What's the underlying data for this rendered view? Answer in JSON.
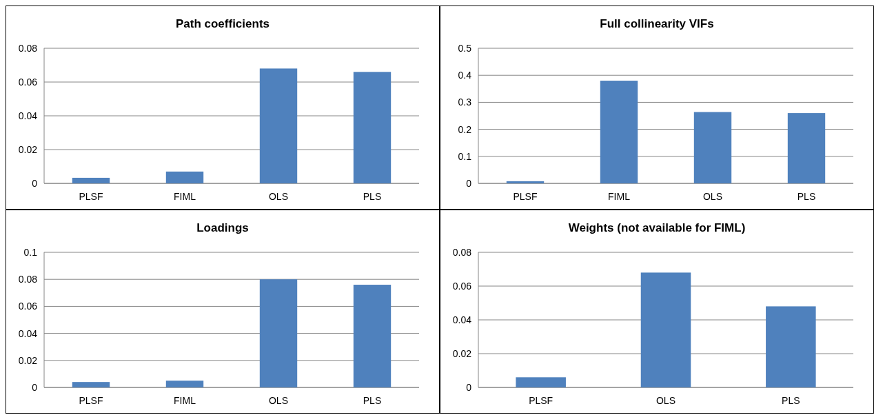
{
  "chart_data": [
    {
      "type": "bar",
      "title": "Path coefficients",
      "categories": [
        "PLSF",
        "FIML",
        "OLS",
        "PLS"
      ],
      "values": [
        0.0033,
        0.007,
        0.068,
        0.066
      ],
      "color": "#4f81bd",
      "ylim": [
        0,
        0.08
      ],
      "yticks": [
        {
          "value": 0,
          "label": "0"
        },
        {
          "value": 0.02,
          "label": "0.02"
        },
        {
          "value": 0.04,
          "label": "0.04"
        },
        {
          "value": 0.06,
          "label": "0.06"
        },
        {
          "value": 0.08,
          "label": "0.08"
        }
      ],
      "grid": "y"
    },
    {
      "type": "bar",
      "title": "Full collinearity VIFs",
      "categories": [
        "PLSF",
        "FIML",
        "OLS",
        "PLS"
      ],
      "values": [
        0.008,
        0.38,
        0.264,
        0.26
      ],
      "color": "#4f81bd",
      "ylim": [
        0,
        0.5
      ],
      "yticks": [
        {
          "value": 0,
          "label": "0"
        },
        {
          "value": 0.1,
          "label": "0.1"
        },
        {
          "value": 0.2,
          "label": "0.2"
        },
        {
          "value": 0.3,
          "label": "0.3"
        },
        {
          "value": 0.4,
          "label": "0.4"
        },
        {
          "value": 0.5,
          "label": "0.5"
        }
      ],
      "grid": "y"
    },
    {
      "type": "bar",
      "title": "Loadings",
      "categories": [
        "PLSF",
        "FIML",
        "OLS",
        "PLS"
      ],
      "values": [
        0.004,
        0.005,
        0.08,
        0.076
      ],
      "color": "#4f81bd",
      "ylim": [
        0,
        0.1
      ],
      "yticks": [
        {
          "value": 0,
          "label": "0"
        },
        {
          "value": 0.02,
          "label": "0.02"
        },
        {
          "value": 0.04,
          "label": "0.04"
        },
        {
          "value": 0.06,
          "label": "0.06"
        },
        {
          "value": 0.08,
          "label": "0.08"
        },
        {
          "value": 0.1,
          "label": "0.1"
        }
      ],
      "grid": "y"
    },
    {
      "type": "bar",
      "title": "Weights (not available for FIML)",
      "categories": [
        "PLSF",
        "OLS",
        "PLS"
      ],
      "values": [
        0.006,
        0.068,
        0.048
      ],
      "color": "#4f81bd",
      "ylim": [
        0,
        0.08
      ],
      "yticks": [
        {
          "value": 0,
          "label": "0"
        },
        {
          "value": 0.02,
          "label": "0.02"
        },
        {
          "value": 0.04,
          "label": "0.04"
        },
        {
          "value": 0.06,
          "label": "0.06"
        },
        {
          "value": 0.08,
          "label": "0.08"
        }
      ],
      "grid": "y"
    }
  ]
}
